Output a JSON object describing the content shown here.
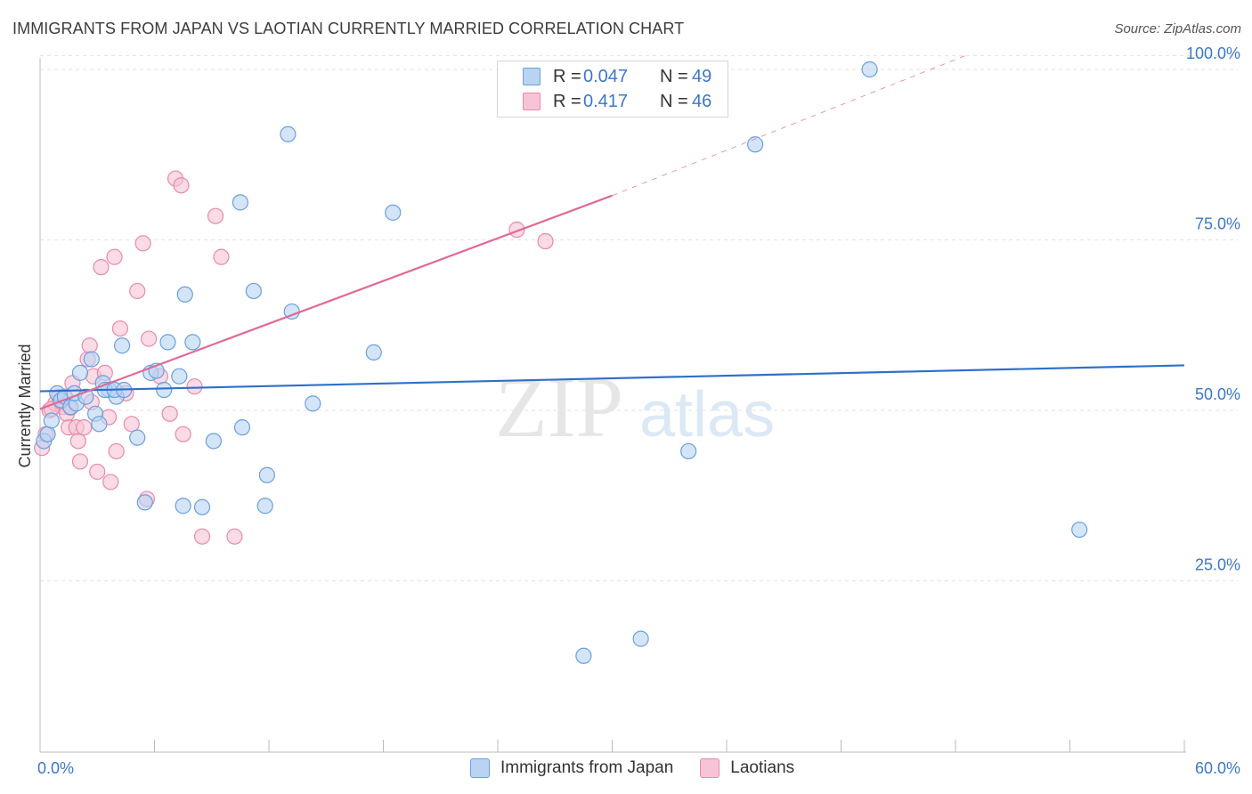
{
  "header": {
    "title": "IMMIGRANTS FROM JAPAN VS LAOTIAN CURRENTLY MARRIED CORRELATION CHART",
    "source": "Source: ZipAtlas.com"
  },
  "legend": {
    "rows": [
      {
        "r_label": "R =",
        "r_value": "0.047",
        "n_label": "N =",
        "n_value": "49"
      },
      {
        "r_label": "R =",
        "r_value": "0.417",
        "n_label": "N =",
        "n_value": "46"
      }
    ]
  },
  "watermark": {
    "zip": "ZIP",
    "atlas": "atlas"
  },
  "colors": {
    "japan_fill": "#b9d3f3",
    "japan_stroke": "#6a9fe0",
    "japan_line": "#2f6fc9",
    "laos_fill": "#f7c3d6",
    "laos_stroke": "#e88aac",
    "laos_line": "#e06a96",
    "axis_label": "#3a78c8",
    "grid": "#e3e3e3"
  },
  "chart_data": {
    "type": "scatter",
    "title": "IMMIGRANTS FROM JAPAN VS LAOTIAN CURRENTLY MARRIED CORRELATION CHART",
    "xlabel": "",
    "ylabel": "Currently Married",
    "xlim": [
      0,
      60
    ],
    "ylim": [
      0,
      102
    ],
    "x_tick_labels": [
      {
        "value": 0,
        "label": "0.0%"
      },
      {
        "value": 60,
        "label": "60.0%"
      }
    ],
    "y_tick_labels": [
      {
        "value": 25,
        "label": "25.0%"
      },
      {
        "value": 50,
        "label": "50.0%"
      },
      {
        "value": 75,
        "label": "75.0%"
      },
      {
        "value": 100,
        "label": "100.0%"
      }
    ],
    "series": [
      {
        "name": "Immigrants from Japan",
        "r": 0.047,
        "n": 49,
        "trend": {
          "x0": 0,
          "y0": 52.8,
          "x1": 60,
          "y1": 56.6
        },
        "points": [
          [
            0.2,
            45.5
          ],
          [
            0.4,
            46.5
          ],
          [
            0.6,
            48.5
          ],
          [
            0.9,
            52.5
          ],
          [
            1.1,
            51.5
          ],
          [
            1.3,
            52
          ],
          [
            1.6,
            50.5
          ],
          [
            1.9,
            51
          ],
          [
            2.1,
            55.5
          ],
          [
            2.7,
            57.5
          ],
          [
            2.9,
            49.5
          ],
          [
            3.3,
            54
          ],
          [
            3.6,
            53
          ],
          [
            3.1,
            48
          ],
          [
            3.4,
            53
          ],
          [
            4.0,
            52
          ],
          [
            3.9,
            53
          ],
          [
            4.4,
            53
          ],
          [
            4.3,
            59.5
          ],
          [
            5.1,
            46
          ],
          [
            5.5,
            36.5
          ],
          [
            5.8,
            55.5
          ],
          [
            6.1,
            55.8
          ],
          [
            6.5,
            53
          ],
          [
            6.7,
            60
          ],
          [
            7.3,
            55
          ],
          [
            7.5,
            36
          ],
          [
            7.6,
            67
          ],
          [
            8.0,
            60
          ],
          [
            8.5,
            35.8
          ],
          [
            9.1,
            45.5
          ],
          [
            10.5,
            80.5
          ],
          [
            10.6,
            47.5
          ],
          [
            11.2,
            67.5
          ],
          [
            11.8,
            36
          ],
          [
            11.9,
            40.5
          ],
          [
            13.0,
            90.5
          ],
          [
            13.2,
            64.5
          ],
          [
            14.3,
            51
          ],
          [
            17.5,
            58.5
          ],
          [
            18.5,
            79
          ],
          [
            28.5,
            14
          ],
          [
            31.5,
            16.5
          ],
          [
            34.0,
            44
          ],
          [
            37.5,
            89
          ],
          [
            43.5,
            100
          ],
          [
            54.5,
            32.5
          ],
          [
            1.8,
            52.5
          ],
          [
            2.4,
            52
          ]
        ]
      },
      {
        "name": "Laotians",
        "r": 0.417,
        "n": 46,
        "trend": {
          "x0": 0,
          "y0": 50.2,
          "x1": 30,
          "y1": 81.5,
          "dash_x1": 48.5,
          "dash_y1": 102
        },
        "points": [
          [
            0.1,
            44.5
          ],
          [
            0.3,
            46.5
          ],
          [
            0.5,
            50
          ],
          [
            0.8,
            51
          ],
          [
            1.0,
            52
          ],
          [
            1.2,
            50.5
          ],
          [
            1.4,
            49.5
          ],
          [
            1.5,
            47.5
          ],
          [
            1.7,
            54
          ],
          [
            1.9,
            47.5
          ],
          [
            2.0,
            45.5
          ],
          [
            2.1,
            42.5
          ],
          [
            2.3,
            47.5
          ],
          [
            2.5,
            57.5
          ],
          [
            2.6,
            59.5
          ],
          [
            2.8,
            55
          ],
          [
            3.0,
            41
          ],
          [
            3.2,
            71
          ],
          [
            3.4,
            55.5
          ],
          [
            3.6,
            49
          ],
          [
            3.7,
            39.5
          ],
          [
            3.9,
            72.5
          ],
          [
            4.0,
            44
          ],
          [
            4.2,
            62
          ],
          [
            4.5,
            52.5
          ],
          [
            4.8,
            48
          ],
          [
            5.1,
            67.5
          ],
          [
            5.4,
            74.5
          ],
          [
            5.6,
            37
          ],
          [
            5.7,
            60.5
          ],
          [
            6.3,
            55
          ],
          [
            6.8,
            49.5
          ],
          [
            7.1,
            84
          ],
          [
            7.4,
            83
          ],
          [
            7.5,
            46.5
          ],
          [
            8.1,
            53.5
          ],
          [
            8.5,
            31.5
          ],
          [
            9.2,
            78.5
          ],
          [
            9.5,
            72.5
          ],
          [
            10.2,
            31.5
          ],
          [
            25.0,
            76.5
          ],
          [
            26.5,
            74.8
          ],
          [
            0.6,
            50.2
          ],
          [
            1.1,
            51.3
          ],
          [
            1.6,
            50.4
          ],
          [
            2.7,
            51.2
          ]
        ]
      }
    ]
  },
  "bottom_legend": {
    "items": [
      {
        "label": "Immigrants from Japan"
      },
      {
        "label": "Laotians"
      }
    ]
  }
}
